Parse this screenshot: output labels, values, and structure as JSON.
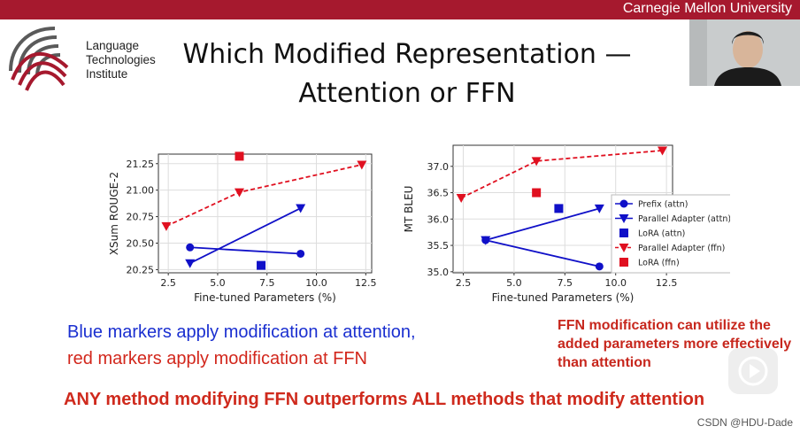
{
  "header": {
    "university": "Carnegie Mellon University"
  },
  "logo": {
    "text_lines": [
      "Language",
      "Technologies",
      "Institute"
    ]
  },
  "slide": {
    "title_line1": "Which Modified Representation —",
    "title_line2": "Attention or FFN",
    "blue_statement": "Blue markers apply modification at attention,",
    "red_statement": "red markers apply modification at FFN",
    "ffn_note": "FFN modification can utilize the added parameters more effectively than attention",
    "conclusion": "ANY method modifying FFN outperforms ALL methods that modify attention"
  },
  "watermark": "CSDN @HDU-Dade",
  "colors": {
    "brand": "#a6192e",
    "attn": "#1010c8",
    "ffn": "#e01020"
  },
  "chart_data": [
    {
      "type": "scatter",
      "xlabel": "Fine-tuned Parameters (%)",
      "ylabel": "XSum ROUGE-2",
      "xlim": [
        2.0,
        12.8
      ],
      "ylim": [
        20.22,
        21.34
      ],
      "xticks": [
        "2.5",
        "5.0",
        "7.5",
        "10.0",
        "12.5"
      ],
      "yticks": [
        "20.25",
        "20.50",
        "20.75",
        "21.00",
        "21.25"
      ],
      "series": [
        {
          "name": "Prefix (attn)",
          "marker": "circle",
          "color": "#1010c8",
          "style": "solid",
          "x": [
            3.6,
            9.2
          ],
          "y": [
            20.46,
            20.4
          ]
        },
        {
          "name": "Parallel Adapter (attn)",
          "marker": "triangle-down",
          "color": "#1010c8",
          "style": "solid",
          "x": [
            3.6,
            9.2
          ],
          "y": [
            20.31,
            20.83
          ]
        },
        {
          "name": "LoRA (attn)",
          "marker": "square",
          "color": "#1010c8",
          "style": "none",
          "x": [
            7.2
          ],
          "y": [
            20.29
          ]
        },
        {
          "name": "Parallel Adapter (ffn)",
          "marker": "triangle-down",
          "color": "#e01020",
          "style": "dashed",
          "x": [
            2.4,
            6.1,
            12.3
          ],
          "y": [
            20.66,
            20.98,
            21.24
          ]
        },
        {
          "name": "LoRA (ffn)",
          "marker": "square",
          "color": "#e01020",
          "style": "none",
          "x": [
            6.1
          ],
          "y": [
            21.32
          ]
        }
      ]
    },
    {
      "type": "scatter",
      "xlabel": "Fine-tuned Parameters (%)",
      "ylabel": "MT BLEU",
      "xlim": [
        2.0,
        12.8
      ],
      "ylim": [
        34.98,
        37.4
      ],
      "xticks": [
        "2.5",
        "5.0",
        "7.5",
        "10.0",
        "12.5"
      ],
      "yticks": [
        "35.0",
        "35.5",
        "36.0",
        "36.5",
        "37.0"
      ],
      "legend_position": "right",
      "series": [
        {
          "name": "Prefix (attn)",
          "marker": "circle",
          "color": "#1010c8",
          "style": "solid",
          "x": [
            3.6,
            9.2
          ],
          "y": [
            35.6,
            35.1
          ]
        },
        {
          "name": "Parallel Adapter (attn)",
          "marker": "triangle-down",
          "color": "#1010c8",
          "style": "solid",
          "x": [
            3.6,
            9.2
          ],
          "y": [
            35.6,
            36.2
          ]
        },
        {
          "name": "LoRA (attn)",
          "marker": "square",
          "color": "#1010c8",
          "style": "none",
          "x": [
            7.2
          ],
          "y": [
            36.2
          ]
        },
        {
          "name": "Parallel Adapter (ffn)",
          "marker": "triangle-down",
          "color": "#e01020",
          "style": "dashed",
          "x": [
            2.4,
            6.1,
            12.3
          ],
          "y": [
            36.4,
            37.1,
            37.3
          ]
        },
        {
          "name": "LoRA (ffn)",
          "marker": "square",
          "color": "#e01020",
          "style": "none",
          "x": [
            6.1
          ],
          "y": [
            36.5
          ]
        }
      ]
    }
  ]
}
